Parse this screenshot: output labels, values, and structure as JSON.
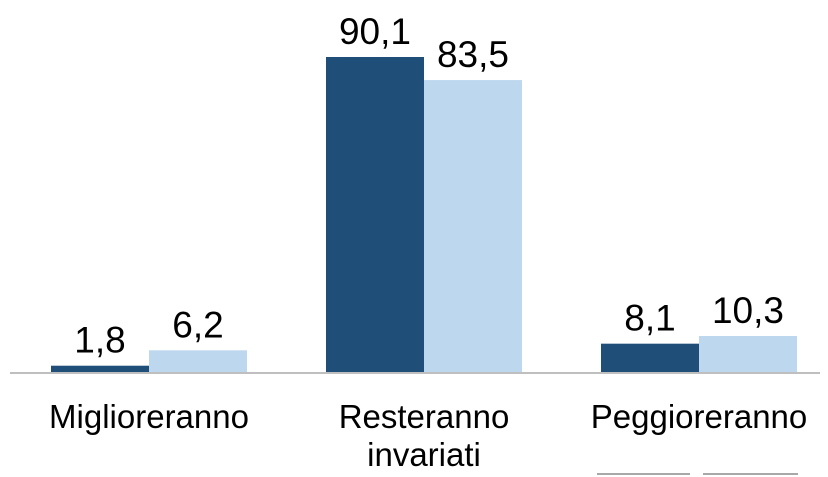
{
  "chart_data": {
    "type": "bar",
    "categories": [
      [
        "Miglioreranno"
      ],
      [
        "Resteranno",
        "invariati"
      ],
      [
        "Peggioreranno"
      ]
    ],
    "series": [
      {
        "values": [
          1.8,
          90.1,
          8.1
        ],
        "labels": [
          "1,8",
          "90,1",
          "8,1"
        ],
        "color": "#1f4e79"
      },
      {
        "values": [
          6.2,
          83.5,
          10.3
        ],
        "labels": [
          "6,2",
          "83,5",
          "10,3"
        ],
        "color": "#bdd7ee"
      }
    ],
    "ylim": [
      0,
      90.1
    ],
    "grid": false,
    "legend": "none",
    "axis_color": "#bfbfbf"
  }
}
